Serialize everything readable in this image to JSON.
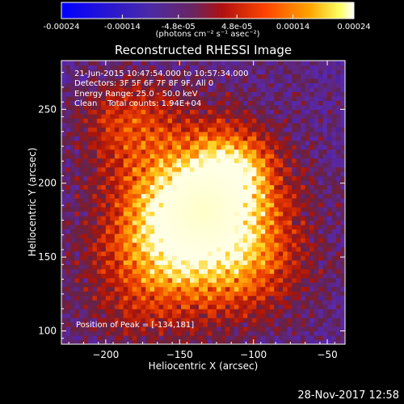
{
  "chart_data": {
    "type": "heatmap",
    "title": "Reconstructed RHESSI Image",
    "xlabel": "Heliocentric X (arcsec)",
    "ylabel": "Heliocentric Y (arcsec)",
    "xlim": [
      -230,
      -38
    ],
    "ylim": [
      91,
      283
    ],
    "x_ticks": [
      -200,
      -150,
      -100,
      -50
    ],
    "y_ticks": [
      100,
      150,
      200,
      250
    ],
    "colorbar": {
      "label": "(photons cm⁻² s⁻¹ asec⁻²)",
      "range": [
        -0.00024,
        0.00024
      ],
      "ticks": [
        {
          "value": -0.00024,
          "label": "-0.00024"
        },
        {
          "value": -0.00014,
          "label": "-0.00014"
        },
        {
          "value": -4.8e-05,
          "label": "-4.8e-05"
        },
        {
          "value": 4.8e-05,
          "label": "4.8e-05"
        },
        {
          "value": 0.00014,
          "label": "0.00014"
        },
        {
          "value": 0.00024,
          "label": "0.00024"
        }
      ]
    },
    "peak": [
      -134,
      181
    ],
    "annotations": [
      "21-Jun-2015 10:47:54.000 to 10:57:34.000",
      "Detectors: 3F 5F 6F 7F 8F 9F, All 0",
      "Energy Range: 25.0 - 50.0 keV",
      "Clean    Total counts: 1.94E+04"
    ],
    "peak_label": "Position of Peak = [-134,181]",
    "footer_date": "28-Nov-2017 12:58"
  }
}
